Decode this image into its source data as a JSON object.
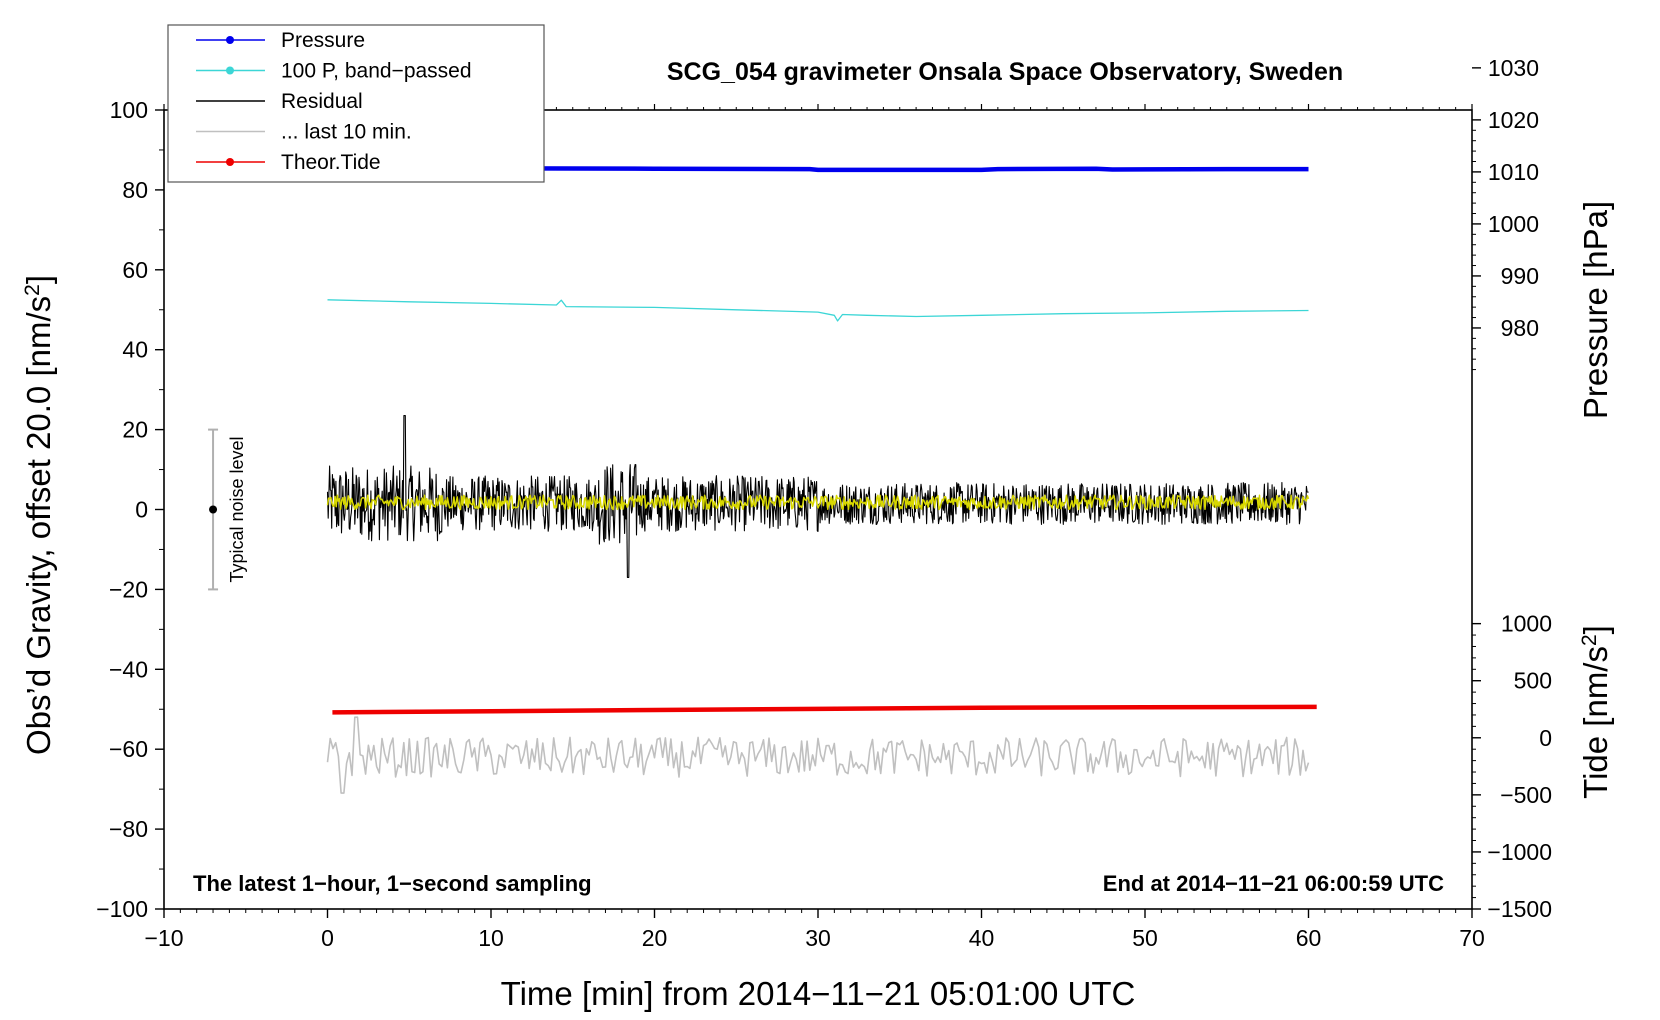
{
  "chart_data": {
    "type": "line",
    "title": "SCG_054 gravimeter Onsala Space Observatory, Sweden",
    "xlabel": "Time [min] from 2014−11−21 05:01:00 UTC",
    "ylabel_left": "Obs’d Gravity, offset 20.0 [nm/s",
    "ylabel_left_sup": "2",
    "ylabel_left_close": "]",
    "ylabel_right_top": "Pressure [hPa]",
    "ylabel_right_bottom": "Tide [nm/s",
    "ylabel_right_bottom_sup": "2",
    "ylabel_right_bottom_close": "]",
    "xlim": [
      -10,
      70
    ],
    "ylim_left": [
      -100,
      100
    ],
    "x_ticks": [
      -10,
      0,
      10,
      20,
      30,
      40,
      50,
      60,
      70
    ],
    "x_tick_labels": [
      "−10",
      "0",
      "10",
      "20",
      "30",
      "40",
      "50",
      "60",
      "70"
    ],
    "y_left_ticks": [
      -100,
      -80,
      -60,
      -40,
      -20,
      0,
      20,
      40,
      60,
      80,
      100
    ],
    "y_left_tick_labels": [
      "−100",
      "−80",
      "−60",
      "−40",
      "−20",
      "0",
      "20",
      "40",
      "60",
      "80",
      "100"
    ],
    "pressure_axis": {
      "ticks": [
        980,
        990,
        1000,
        1010,
        1020,
        1030
      ],
      "tick_labels": [
        "980",
        "990",
        "1000",
        "1010",
        "1020",
        "1030"
      ],
      "map": {
        "hpa_at_0": 945.1,
        "hpa_per_unit": 0.768
      }
    },
    "tide_axis": {
      "ticks": [
        -1500,
        -1000,
        -500,
        0,
        500,
        1000
      ],
      "tick_labels": [
        "−1500",
        "−1000",
        "−500",
        "0",
        "500",
        "1000"
      ],
      "map": {
        "tide_at_0": 2000,
        "tide_per_unit": 35
      }
    },
    "series": [
      {
        "name": "Pressure",
        "color": "#0000ee",
        "kind": "line",
        "x": [
          0,
          10,
          20,
          29.5,
          30,
          35,
          40,
          41,
          47,
          48,
          55,
          60
        ],
        "y": [
          85.4,
          85.4,
          85.3,
          85.2,
          85.0,
          85.0,
          85.0,
          85.2,
          85.3,
          85.1,
          85.2,
          85.2
        ]
      },
      {
        "name": "100 P, band−passed",
        "color": "#3cd6d6",
        "kind": "line",
        "x": [
          0,
          5,
          10,
          14,
          14.3,
          14.6,
          20,
          25,
          30,
          31,
          31.2,
          31.5,
          33,
          36,
          40,
          45,
          50,
          55,
          60
        ],
        "y": [
          52.5,
          52.0,
          51.6,
          51.2,
          52.4,
          50.8,
          50.6,
          50.0,
          49.4,
          48.6,
          47.2,
          48.8,
          48.6,
          48.3,
          48.6,
          49.0,
          49.2,
          49.6,
          49.8
        ]
      },
      {
        "name": "Residual",
        "color": "#000000",
        "kind": "noise",
        "x_start": 0,
        "x_end": 60,
        "mean": 1.5,
        "amplitude": 7,
        "peak_max": 23.5,
        "peak_min": -17
      },
      {
        "name": "... last 10 min.",
        "color": "#c0c0c0",
        "kind": "noise",
        "x_start": 0,
        "x_end": 60,
        "mean": -62,
        "amplitude": 5,
        "peak_max": -52,
        "peak_min": -71
      },
      {
        "name": "Theor.Tide",
        "color": "#ee0000",
        "kind": "line",
        "x": [
          0.3,
          10,
          20,
          30,
          40,
          50,
          60.5
        ],
        "y": [
          -50.8,
          -50.5,
          -50.2,
          -49.9,
          -49.6,
          -49.5,
          -49.4
        ]
      },
      {
        "name": "Mean trace",
        "color": "#d8d800",
        "kind": "noise",
        "x_start": 0,
        "x_end": 60,
        "mean": 1.8,
        "amplitude": 1.8,
        "peak_max": 4.5,
        "peak_min": -1.0
      }
    ],
    "legend": {
      "placement": "top-left",
      "entries": [
        {
          "label": "Pressure",
          "color": "#0000ee",
          "marker": true
        },
        {
          "label": "100 P, band−passed",
          "color": "#3cd6d6",
          "marker": true
        },
        {
          "label": "Residual",
          "color": "#000000",
          "marker": false
        },
        {
          "label": "... last 10 min.",
          "color": "#c0c0c0",
          "marker": false
        },
        {
          "label": "Theor.Tide",
          "color": "#ee0000",
          "marker": true
        }
      ]
    },
    "noise_bar": {
      "x": -7,
      "center": 0,
      "low": -20,
      "high": 20,
      "label": "Typical noise level"
    },
    "annotations": {
      "bottom_left": "The latest 1−hour, 1−second sampling",
      "bottom_right": "End at 2014−11−21 06:00:59 UTC"
    }
  }
}
